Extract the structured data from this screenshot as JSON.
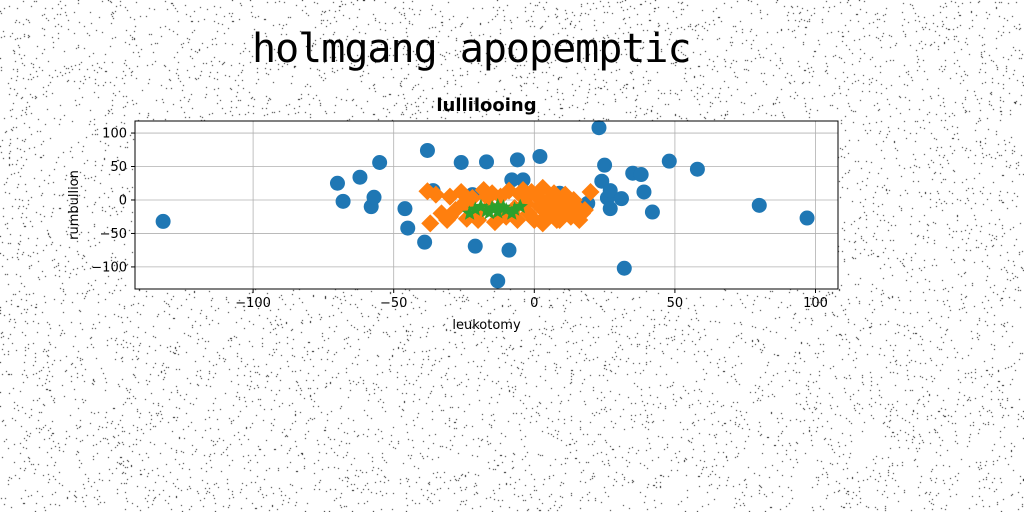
{
  "page": {
    "title": "holmgang apopemptic"
  },
  "colors": {
    "series1": "#1f77b4",
    "series2": "#ff7f0e",
    "series3": "#2ca02c",
    "grid": "#b0b0b0",
    "noise": "#000000"
  },
  "chart_data": {
    "type": "scatter",
    "title": "lullilooing",
    "xlabel": "leukotomy",
    "ylabel": "rumbullion",
    "xlim": [
      -142,
      108
    ],
    "ylim": [
      -133,
      118
    ],
    "xticks": [
      -100,
      -50,
      0,
      50,
      100
    ],
    "yticks": [
      -100,
      -50,
      0,
      50,
      100
    ],
    "grid": true,
    "series": [
      {
        "marker": "circle",
        "color": "#1f77b4",
        "points": [
          [
            -132,
            -32
          ],
          [
            -70,
            25
          ],
          [
            -68,
            -2
          ],
          [
            -62,
            34
          ],
          [
            -58,
            -10
          ],
          [
            -57,
            4
          ],
          [
            -55,
            56
          ],
          [
            -46,
            -13
          ],
          [
            -45,
            -42
          ],
          [
            -39,
            -63
          ],
          [
            -38,
            74
          ],
          [
            -36,
            14
          ],
          [
            -26,
            56
          ],
          [
            -21,
            -69
          ],
          [
            -22,
            8
          ],
          [
            -17,
            57
          ],
          [
            -13,
            -121
          ],
          [
            -9,
            -75
          ],
          [
            -8,
            30
          ],
          [
            -6,
            60
          ],
          [
            -4,
            30
          ],
          [
            2,
            65
          ],
          [
            9,
            10
          ],
          [
            19,
            -5
          ],
          [
            23,
            108
          ],
          [
            24,
            28
          ],
          [
            25,
            52
          ],
          [
            26,
            3
          ],
          [
            27,
            14
          ],
          [
            27,
            -13
          ],
          [
            31,
            2
          ],
          [
            32,
            -102
          ],
          [
            35,
            40
          ],
          [
            38,
            38
          ],
          [
            39,
            12
          ],
          [
            42,
            -18
          ],
          [
            48,
            58
          ],
          [
            58,
            46
          ],
          [
            80,
            -8
          ],
          [
            97,
            -27
          ]
        ]
      },
      {
        "marker": "diamond",
        "color": "#ff7f0e",
        "points": [
          [
            -38,
            13
          ],
          [
            -37,
            -35
          ],
          [
            -35,
            8
          ],
          [
            -33,
            -20
          ],
          [
            -31,
            -30
          ],
          [
            -30,
            5
          ],
          [
            -28,
            -15
          ],
          [
            -26,
            12
          ],
          [
            -25,
            -5
          ],
          [
            -24,
            -28
          ],
          [
            -22,
            3
          ],
          [
            -20,
            -20
          ],
          [
            -18,
            15
          ],
          [
            -16,
            -10
          ],
          [
            -15,
            10
          ],
          [
            -14,
            -33
          ],
          [
            -12,
            5
          ],
          [
            -10,
            -25
          ],
          [
            -9,
            14
          ],
          [
            -7,
            -12
          ],
          [
            -6,
            -30
          ],
          [
            -5,
            8
          ],
          [
            -4,
            15
          ],
          [
            -3,
            -5
          ],
          [
            -2,
            -20
          ],
          [
            -1,
            12
          ],
          [
            0,
            -30
          ],
          [
            1,
            5
          ],
          [
            2,
            -10
          ],
          [
            3,
            18
          ],
          [
            4,
            -25
          ],
          [
            5,
            0
          ],
          [
            6,
            -15
          ],
          [
            7,
            10
          ],
          [
            8,
            -30
          ],
          [
            9,
            -5
          ],
          [
            10,
            -20
          ],
          [
            11,
            8
          ],
          [
            12,
            -15
          ],
          [
            13,
            -25
          ],
          [
            15,
            -10
          ],
          [
            16,
            -30
          ],
          [
            17,
            -20
          ],
          [
            18,
            -15
          ],
          [
            -20,
            -30
          ],
          [
            -12,
            -15
          ],
          [
            -8,
            -20
          ],
          [
            3,
            -35
          ],
          [
            6,
            3
          ],
          [
            14,
            0
          ],
          [
            -30,
            -25
          ],
          [
            -17,
            5
          ],
          [
            -3,
            10
          ],
          [
            9,
            -30
          ],
          [
            -23,
            -10
          ],
          [
            20,
            12
          ]
        ]
      },
      {
        "marker": "star",
        "color": "#2ca02c",
        "points": [
          [
            -23,
            -20
          ],
          [
            -21,
            -14
          ],
          [
            -19,
            -10
          ],
          [
            -17,
            -16
          ],
          [
            -15,
            -12
          ],
          [
            -13,
            -18
          ],
          [
            -11,
            -11
          ],
          [
            -10,
            -15
          ],
          [
            -8,
            -20
          ],
          [
            -7,
            -14
          ],
          [
            -5,
            -10
          ],
          [
            -13,
            -9
          ],
          [
            -16,
            -19
          ]
        ]
      }
    ]
  }
}
